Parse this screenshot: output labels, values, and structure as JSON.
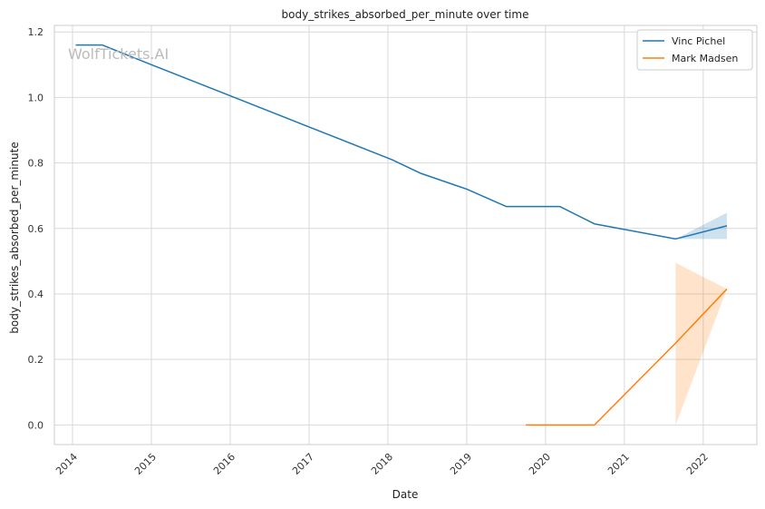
{
  "chart_data": {
    "type": "line",
    "title": "body_strikes_absorbed_per_minute over time",
    "xlabel": "Date",
    "ylabel": "body_strikes_absorbed_per_minute",
    "watermark": "WolfTickets.AI",
    "x_ticks": [
      "2014",
      "2015",
      "2016",
      "2017",
      "2018",
      "2019",
      "2020",
      "2021",
      "2022"
    ],
    "y_ticks": [
      "0.0",
      "0.2",
      "0.4",
      "0.6",
      "0.8",
      "1.0",
      "1.2"
    ],
    "xlim": [
      2013.77,
      2022.68
    ],
    "ylim": [
      -0.06,
      1.22
    ],
    "grid": true,
    "legend_position": "top-right",
    "series": [
      {
        "name": "Vinc Pichel",
        "color": "#1f77b4",
        "band_color": "#1f77b4",
        "x": [
          2014.04,
          2014.38,
          2015.0,
          2016.0,
          2017.0,
          2018.05,
          2018.42,
          2019.0,
          2019.5,
          2020.18,
          2020.62,
          2021.0,
          2021.65,
          2022.3
        ],
        "y": [
          1.16,
          1.16,
          1.1,
          1.005,
          0.91,
          0.81,
          0.768,
          0.72,
          0.667,
          0.667,
          0.614,
          0.597,
          0.568,
          0.608
        ],
        "band": {
          "x": [
            2021.65,
            2022.3
          ],
          "lower": [
            0.568,
            0.568
          ],
          "upper": [
            0.568,
            0.648
          ]
        }
      },
      {
        "name": "Mark Madsen",
        "color": "#ff7f0e",
        "band_color": "#ff7f0e",
        "x": [
          2019.75,
          2020.62,
          2021.65,
          2022.3
        ],
        "y": [
          0.0,
          0.0,
          0.25,
          0.415
        ],
        "band": {
          "x": [
            2021.65,
            2022.3
          ],
          "lower": [
            0.0,
            0.415
          ],
          "upper": [
            0.495,
            0.415
          ]
        }
      }
    ]
  }
}
